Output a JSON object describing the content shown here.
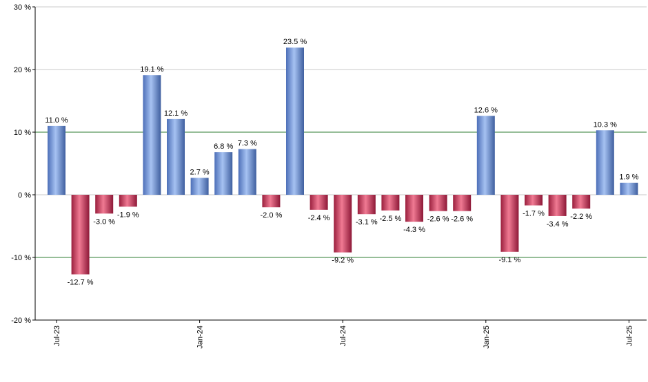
{
  "chart_data": {
    "type": "bar",
    "title": "",
    "xlabel": "",
    "ylabel": "",
    "ylim": [
      -20,
      30
    ],
    "y_ticks": [
      30,
      20,
      10,
      0,
      -10,
      -20
    ],
    "y_tick_labels": [
      "30 %",
      "20 %",
      "10 %",
      "0 %",
      "-10 %",
      "-20 %"
    ],
    "x_tick_labels": [
      "Jul-23",
      "Jan-24",
      "Jul-24",
      "Jan-25",
      "Jul-25"
    ],
    "x_tick_positions": [
      0,
      6,
      12,
      18,
      24
    ],
    "values": [
      11.0,
      -12.7,
      -3.0,
      -1.9,
      19.1,
      12.1,
      2.7,
      6.8,
      7.3,
      -2.0,
      23.5,
      -2.4,
      -9.2,
      -3.1,
      -2.5,
      -4.3,
      -2.6,
      -2.6,
      12.6,
      -9.1,
      -1.7,
      -3.4,
      -2.2,
      10.3,
      1.9
    ],
    "data_labels": [
      "11.0 %",
      "-12.7 %",
      "-3.0 %",
      "-1.9 %",
      "19.1 %",
      "12.1 %",
      "2.7 %",
      "6.8 %",
      "7.3 %",
      "-2.0 %",
      "23.5 %",
      "-2.4 %",
      "-9.2 %",
      "-3.1 %",
      "-2.5 %",
      "-4.3 %",
      "-2.6 %",
      "-2.6 %",
      "12.6 %",
      "-9.1 %",
      "-1.7 %",
      "-3.4 %",
      "-2.2 %",
      "10.3 %",
      "1.9 %"
    ],
    "grid": true,
    "reference_lines": [
      10,
      -10
    ],
    "colors": {
      "positive": "#6f95dd",
      "negative": "#cc3355",
      "grid": "#c8c8c8",
      "reference": "#2e7d32",
      "axis": "#000000"
    }
  }
}
